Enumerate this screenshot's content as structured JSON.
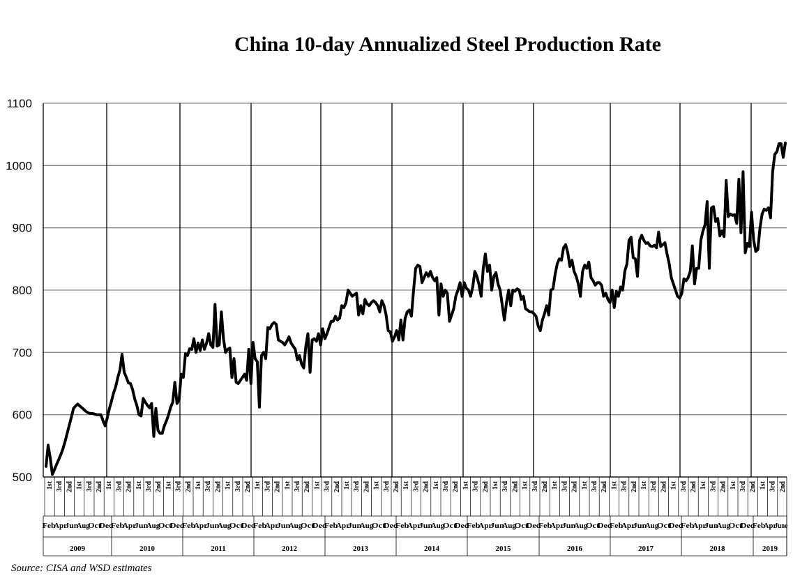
{
  "chart_data": {
    "type": "line",
    "title": "China 10-day Annualized  Steel Production Rate",
    "source": "Source: CISA and WSD estimates",
    "ylim": [
      500,
      1100
    ],
    "y_ticks": [
      "500",
      "600",
      "700",
      "800",
      "900",
      "1000",
      "1100"
    ],
    "grid": "horizontal gridlines; vertical year separators",
    "x_axis": {
      "tiers": [
        "dekad (1st / 2nd / 3rd)",
        "month",
        "year"
      ],
      "years": [
        "2009",
        "2010",
        "2011",
        "2012",
        "2013",
        "2014",
        "2015",
        "2016",
        "2017",
        "2018",
        "2019"
      ],
      "month_labels": [
        "Feb",
        "Apr",
        "Jun",
        "Aug",
        "Oct",
        "Dec"
      ],
      "month_labels_2019": [
        "Feb",
        "Apr",
        "June"
      ],
      "dekad_labels": [
        "1st",
        "2nd",
        "3rd"
      ]
    },
    "series": [
      {
        "values": [
          517,
          551,
          530,
          504,
          512,
          520,
          528,
          536,
          545,
          557,
          570,
          583,
          596,
          610,
          614,
          617,
          614,
          611,
          608,
          605,
          603,
          602,
          602,
          601,
          600,
          600,
          600,
          590,
          582,
          595,
          610,
          622,
          635,
          645,
          660,
          672,
          697,
          668,
          660,
          651,
          650,
          640,
          625,
          615,
          600,
          598,
          626,
          620,
          615,
          611,
          618,
          565,
          610,
          575,
          570,
          570,
          582,
          590,
          600,
          612,
          620,
          652,
          618,
          624,
          665,
          660,
          698,
          695,
          706,
          705,
          722,
          700,
          715,
          703,
          720,
          705,
          715,
          730,
          712,
          708,
          777,
          710,
          712,
          765,
          722,
          700,
          705,
          707,
          660,
          690,
          652,
          650,
          655,
          660,
          665,
          655,
          705,
          650,
          716,
          690,
          685,
          612,
          695,
          700,
          690,
          740,
          738,
          745,
          748,
          745,
          720,
          718,
          716,
          712,
          718,
          725,
          715,
          710,
          705,
          688,
          695,
          681,
          675,
          710,
          730,
          668,
          720,
          722,
          718,
          730,
          712,
          738,
          722,
          730,
          740,
          750,
          750,
          758,
          752,
          755,
          775,
          772,
          780,
          800,
          795,
          790,
          793,
          795,
          760,
          775,
          762,
          785,
          778,
          775,
          780,
          783,
          780,
          775,
          765,
          783,
          775,
          760,
          735,
          733,
          718,
          725,
          735,
          720,
          752,
          720,
          755,
          765,
          768,
          758,
          800,
          835,
          840,
          838,
          812,
          820,
          828,
          822,
          830,
          820,
          815,
          820,
          760,
          810,
          790,
          800,
          795,
          750,
          760,
          770,
          790,
          800,
          812,
          790,
          812,
          803,
          800,
          790,
          805,
          830,
          822,
          808,
          790,
          835,
          858,
          830,
          840,
          800,
          822,
          828,
          810,
          800,
          775,
          752,
          780,
          800,
          775,
          800,
          798,
          802,
          800,
          785,
          790,
          770,
          768,
          765,
          765,
          762,
          758,
          742,
          735,
          752,
          762,
          775,
          760,
          800,
          802,
          825,
          842,
          850,
          848,
          868,
          873,
          860,
          838,
          848,
          830,
          822,
          810,
          790,
          830,
          840,
          835,
          845,
          820,
          815,
          808,
          812,
          812,
          808,
          790,
          795,
          785,
          780,
          800,
          772,
          798,
          790,
          805,
          800,
          830,
          842,
          880,
          885,
          852,
          850,
          822,
          880,
          888,
          880,
          875,
          876,
          871,
          870,
          872,
          868,
          893,
          870,
          873,
          876,
          858,
          843,
          820,
          810,
          800,
          790,
          787,
          795,
          818,
          815,
          820,
          830,
          871,
          810,
          835,
          835,
          880,
          895,
          905,
          942,
          835,
          932,
          934,
          910,
          915,
          887,
          895,
          886,
          976,
          918,
          922,
          920,
          921,
          907,
          978,
          892,
          990,
          860,
          875,
          870,
          925,
          880,
          862,
          865,
          900,
          922,
          930,
          928,
          932,
          916,
          990,
          1018,
          1022,
          1035,
          1035,
          1013,
          1036
        ]
      }
    ]
  }
}
